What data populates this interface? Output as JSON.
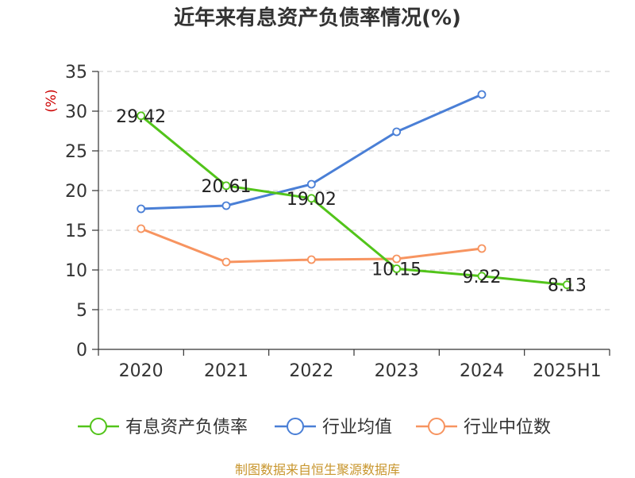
{
  "title": "近年来有息资产负债率情况(%)",
  "source": "制图数据来自恒生聚源数据库",
  "chart_data": {
    "type": "line",
    "title": "近年来有息资产负债率情况(%)",
    "ylabel": "(%)",
    "xlabel": "",
    "categories": [
      "2020",
      "2021",
      "2022",
      "2023",
      "2024",
      "2025H1"
    ],
    "ylim": [
      0,
      35
    ],
    "yticks": [
      0,
      5,
      10,
      15,
      20,
      25,
      30,
      35
    ],
    "grid": true,
    "legend_position": "bottom",
    "series": [
      {
        "name": "有息资产负债率",
        "color": "#52c41a",
        "values": [
          29.42,
          20.61,
          19.02,
          10.15,
          9.22,
          8.13
        ],
        "labels": [
          "29.42",
          "20.61",
          "19.02",
          "10.15",
          "9.22",
          "8.13"
        ]
      },
      {
        "name": "行业均值",
        "color": "#4a7fd6",
        "values": [
          17.7,
          18.1,
          20.8,
          27.4,
          32.1,
          null
        ]
      },
      {
        "name": "行业中位数",
        "color": "#f79460",
        "values": [
          15.2,
          11.0,
          11.3,
          11.4,
          12.7,
          null
        ]
      }
    ]
  }
}
